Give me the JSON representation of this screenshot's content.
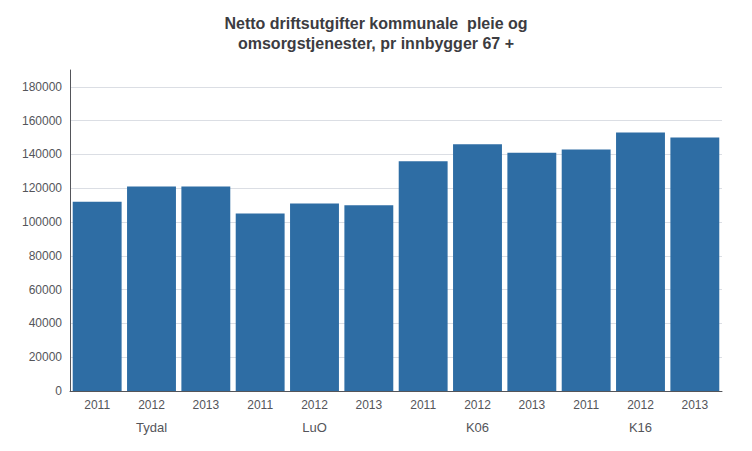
{
  "chart_data": {
    "type": "bar",
    "title": "Netto driftsutgifter kommunale  pleie og\nomsorgstjenester, pr innbygger 67 +",
    "categories": [
      "2011",
      "2012",
      "2013",
      "2011",
      "2012",
      "2013",
      "2011",
      "2012",
      "2013",
      "2011",
      "2012",
      "2013"
    ],
    "values": [
      112000,
      121000,
      121000,
      105000,
      111000,
      110000,
      136000,
      146000,
      141000,
      143000,
      153000,
      150000
    ],
    "annotations": [
      "Tydal",
      "LuO",
      "K06",
      "K16"
    ],
    "color": "#2E6DA4",
    "ylim": [
      0,
      190000
    ],
    "yticks": [
      0,
      20000,
      40000,
      60000,
      80000,
      100000,
      120000,
      140000,
      160000,
      180000
    ],
    "grid": true
  }
}
